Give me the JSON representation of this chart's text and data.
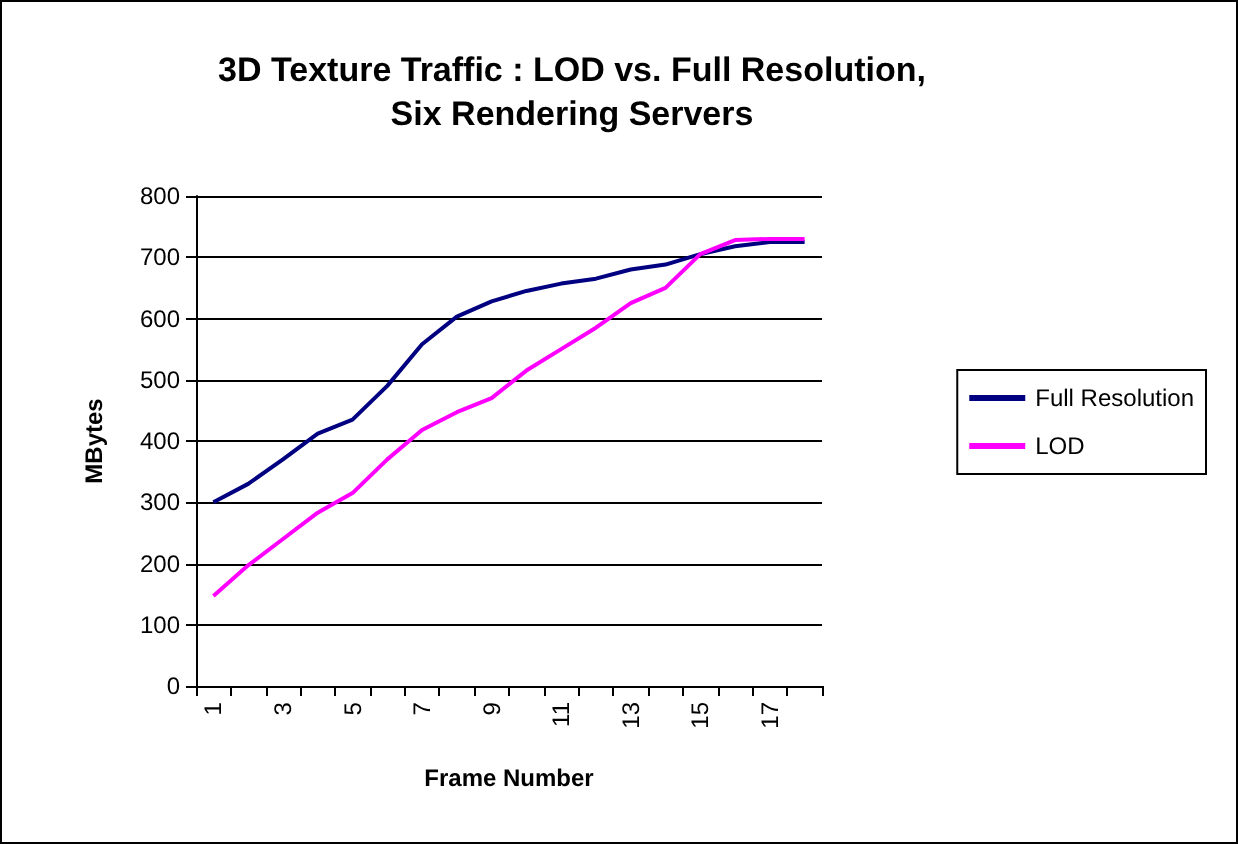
{
  "chart_data": {
    "type": "line",
    "title": "3D Texture Traffic : LOD vs. Full Resolution,\nSix Rendering Servers",
    "xlabel": "Frame Number",
    "ylabel": "MBytes",
    "categories": [
      "1",
      null,
      "3",
      null,
      "5",
      null,
      "7",
      null,
      "9",
      null,
      "11",
      null,
      "13",
      null,
      "15",
      null,
      "17",
      null
    ],
    "series": [
      {
        "name": "Full Resolution",
        "color": "#000080",
        "values": [
          300,
          330,
          370,
          412,
          435,
          490,
          558,
          603,
          628,
          645,
          657,
          665,
          680,
          688,
          705,
          718,
          725,
          725
        ]
      },
      {
        "name": "LOD",
        "color": "#ff00ff",
        "values": [
          147,
          197,
          240,
          283,
          315,
          370,
          418,
          447,
          470,
          515,
          550,
          585,
          625,
          650,
          705,
          728,
          730,
          730
        ]
      }
    ],
    "ylim": [
      0,
      800
    ],
    "yticks": [
      0,
      100,
      200,
      300,
      400,
      500,
      600,
      700,
      800
    ],
    "grid": "y",
    "legend": "right",
    "marker": "none",
    "line_style": "solid"
  }
}
